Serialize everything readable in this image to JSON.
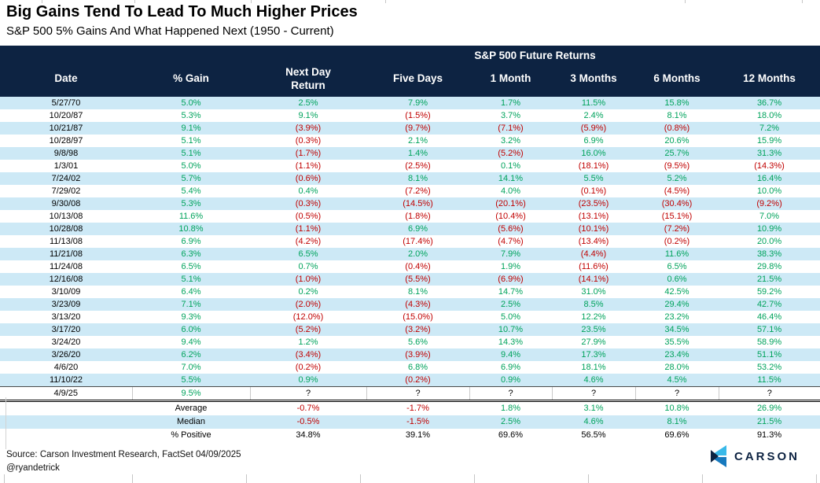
{
  "chart_data": {
    "type": "table",
    "title": "Big Gains Tend To Lead To Much Higher Prices",
    "subtitle": "S&P 500 5% Gains And What Happened Next (1950 - Current)",
    "group_header": "S&P 500 Future Returns",
    "columns": [
      "Date",
      "% Gain",
      "Next Day Return",
      "Five Days",
      "1 Month",
      "3 Months",
      "6 Months",
      "12 Months"
    ],
    "rows": [
      [
        "5/27/70",
        "5.0%",
        "2.5%",
        "7.9%",
        "1.7%",
        "11.5%",
        "15.8%",
        "36.7%"
      ],
      [
        "10/20/87",
        "5.3%",
        "9.1%",
        "(1.5%)",
        "3.7%",
        "2.4%",
        "8.1%",
        "18.0%"
      ],
      [
        "10/21/87",
        "9.1%",
        "(3.9%)",
        "(9.7%)",
        "(7.1%)",
        "(5.9%)",
        "(0.8%)",
        "7.2%"
      ],
      [
        "10/28/97",
        "5.1%",
        "(0.3%)",
        "2.1%",
        "3.2%",
        "6.9%",
        "20.6%",
        "15.9%"
      ],
      [
        "9/8/98",
        "5.1%",
        "(1.7%)",
        "1.4%",
        "(5.2%)",
        "16.0%",
        "25.7%",
        "31.3%"
      ],
      [
        "1/3/01",
        "5.0%",
        "(1.1%)",
        "(2.5%)",
        "0.1%",
        "(18.1%)",
        "(9.5%)",
        "(14.3%)"
      ],
      [
        "7/24/02",
        "5.7%",
        "(0.6%)",
        "8.1%",
        "14.1%",
        "5.5%",
        "5.2%",
        "16.4%"
      ],
      [
        "7/29/02",
        "5.4%",
        "0.4%",
        "(7.2%)",
        "4.0%",
        "(0.1%)",
        "(4.5%)",
        "10.0%"
      ],
      [
        "9/30/08",
        "5.3%",
        "(0.3%)",
        "(14.5%)",
        "(20.1%)",
        "(23.5%)",
        "(30.4%)",
        "(9.2%)"
      ],
      [
        "10/13/08",
        "11.6%",
        "(0.5%)",
        "(1.8%)",
        "(10.4%)",
        "(13.1%)",
        "(15.1%)",
        "7.0%"
      ],
      [
        "10/28/08",
        "10.8%",
        "(1.1%)",
        "6.9%",
        "(5.6%)",
        "(10.1%)",
        "(7.2%)",
        "10.9%"
      ],
      [
        "11/13/08",
        "6.9%",
        "(4.2%)",
        "(17.4%)",
        "(4.7%)",
        "(13.4%)",
        "(0.2%)",
        "20.0%"
      ],
      [
        "11/21/08",
        "6.3%",
        "6.5%",
        "2.0%",
        "7.9%",
        "(4.4%)",
        "11.6%",
        "38.3%"
      ],
      [
        "11/24/08",
        "6.5%",
        "0.7%",
        "(0.4%)",
        "1.9%",
        "(11.6%)",
        "6.5%",
        "29.8%"
      ],
      [
        "12/16/08",
        "5.1%",
        "(1.0%)",
        "(5.5%)",
        "(6.9%)",
        "(14.1%)",
        "0.6%",
        "21.5%"
      ],
      [
        "3/10/09",
        "6.4%",
        "0.2%",
        "8.1%",
        "14.7%",
        "31.0%",
        "42.5%",
        "59.2%"
      ],
      [
        "3/23/09",
        "7.1%",
        "(2.0%)",
        "(4.3%)",
        "2.5%",
        "8.5%",
        "29.4%",
        "42.7%"
      ],
      [
        "3/13/20",
        "9.3%",
        "(12.0%)",
        "(15.0%)",
        "5.0%",
        "12.2%",
        "23.2%",
        "46.4%"
      ],
      [
        "3/17/20",
        "6.0%",
        "(5.2%)",
        "(3.2%)",
        "10.7%",
        "23.5%",
        "34.5%",
        "57.1%"
      ],
      [
        "3/24/20",
        "9.4%",
        "1.2%",
        "5.6%",
        "14.3%",
        "27.9%",
        "35.5%",
        "58.9%"
      ],
      [
        "3/26/20",
        "6.2%",
        "(3.4%)",
        "(3.9%)",
        "9.4%",
        "17.3%",
        "23.4%",
        "51.1%"
      ],
      [
        "4/6/20",
        "7.0%",
        "(0.2%)",
        "6.8%",
        "6.9%",
        "18.1%",
        "28.0%",
        "53.2%"
      ],
      [
        "11/10/22",
        "5.5%",
        "0.9%",
        "(0.2%)",
        "0.9%",
        "4.6%",
        "4.5%",
        "11.5%"
      ],
      [
        "4/9/25",
        "9.5%",
        "?",
        "?",
        "?",
        "?",
        "?",
        "?"
      ]
    ],
    "summary_rows": [
      {
        "label": "Average",
        "values": [
          "-0.7%",
          "-1.7%",
          "1.8%",
          "3.1%",
          "10.8%",
          "26.9%"
        ]
      },
      {
        "label": "Median",
        "values": [
          "-0.5%",
          "-1.5%",
          "2.5%",
          "4.6%",
          "8.1%",
          "21.5%"
        ]
      },
      {
        "label": "% Positive",
        "values": [
          "34.8%",
          "39.1%",
          "69.6%",
          "56.5%",
          "69.6%",
          "91.3%"
        ]
      }
    ]
  },
  "footer": {
    "source": "Source: Carson Investment Research, FactSet 04/09/2025",
    "handle": "@ryandetrick",
    "logo_text": "CARSON"
  },
  "colors": {
    "header_navy": "#0D2342",
    "row_stripe_blue": "#CDE9F6",
    "positive_green": "#00A35C",
    "negative_red": "#C00000",
    "logo_light_blue": "#39B9E9",
    "logo_mid_blue": "#1779BE"
  }
}
